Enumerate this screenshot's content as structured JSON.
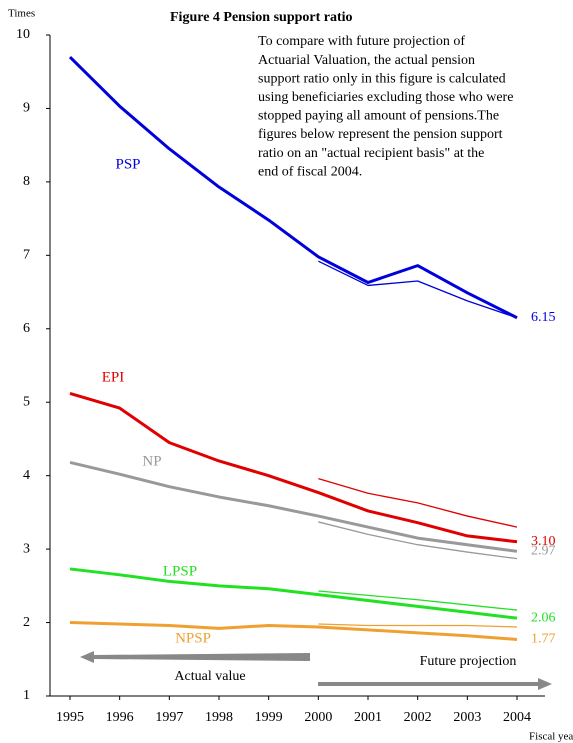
{
  "chart_data": {
    "type": "line",
    "title": "Figure 4 Pension support ratio",
    "y_label": "Times",
    "x_label": "Fiscal year",
    "note_lines": [
      "To compare with future projection of",
      "Actuarial Valuation, the actual pension",
      "support ratio only in this figure is calculated",
      "using beneficiaries excluding those who were",
      "stopped paying all amount of pensions.The",
      "figures below represent the pension support",
      "ratio on an \"actual recipient basis\" at the",
      "end of fiscal 2004."
    ],
    "arrow_labels": [
      "Actual value",
      "Future projection"
    ],
    "categories": [
      "1995",
      "1996",
      "1997",
      "1998",
      "1999",
      "2000",
      "2001",
      "2002",
      "2003",
      "2004"
    ],
    "ylim": [
      1,
      10
    ],
    "yticks": [
      1,
      2,
      3,
      4,
      5,
      6,
      7,
      8,
      9,
      10
    ],
    "series": [
      {
        "name": "PSP",
        "color": "#0000dd",
        "values": [
          9.7,
          9.03,
          8.45,
          7.93,
          7.48,
          6.98,
          6.63,
          6.86,
          6.49,
          6.15
        ],
        "value_labels": [
          null,
          null,
          null,
          null,
          null,
          null,
          null,
          null,
          null,
          "6.15"
        ],
        "projection_values": [
          null,
          null,
          null,
          null,
          null,
          6.92,
          6.59,
          6.65,
          6.38,
          6.15
        ]
      },
      {
        "name": "EPI",
        "color": "#e00000",
        "values": [
          5.12,
          4.92,
          4.45,
          4.2,
          4.0,
          3.77,
          3.52,
          3.36,
          3.18,
          3.1
        ],
        "value_labels": [
          null,
          null,
          null,
          null,
          null,
          null,
          null,
          null,
          null,
          "3.10"
        ],
        "projection_values": [
          null,
          null,
          null,
          null,
          null,
          3.96,
          3.76,
          3.63,
          3.45,
          3.3
        ]
      },
      {
        "name": "NP",
        "color": "#999999",
        "values": [
          4.18,
          4.02,
          3.85,
          3.71,
          3.59,
          3.45,
          3.3,
          3.15,
          3.06,
          2.97
        ],
        "value_labels": [
          null,
          null,
          null,
          null,
          null,
          null,
          null,
          null,
          null,
          "2.97"
        ],
        "projection_values": [
          null,
          null,
          null,
          null,
          null,
          3.37,
          3.2,
          3.06,
          2.96,
          2.87
        ]
      },
      {
        "name": "LPSP",
        "color": "#22e022",
        "values": [
          2.73,
          2.65,
          2.56,
          2.5,
          2.46,
          2.38,
          2.3,
          2.22,
          2.14,
          2.06
        ],
        "value_labels": [
          null,
          null,
          null,
          null,
          null,
          null,
          null,
          null,
          null,
          "2.06"
        ],
        "projection_values": [
          null,
          null,
          null,
          null,
          null,
          2.43,
          2.37,
          2.31,
          2.24,
          2.17
        ]
      },
      {
        "name": "NPSP",
        "color": "#f0a030",
        "values": [
          2.0,
          1.98,
          1.96,
          1.92,
          1.96,
          1.94,
          1.9,
          1.86,
          1.82,
          1.77
        ],
        "value_labels": [
          null,
          null,
          null,
          null,
          null,
          null,
          null,
          null,
          null,
          "1.77"
        ],
        "projection_values": [
          null,
          null,
          null,
          null,
          null,
          1.98,
          1.96,
          1.96,
          1.96,
          1.94
        ]
      }
    ]
  }
}
